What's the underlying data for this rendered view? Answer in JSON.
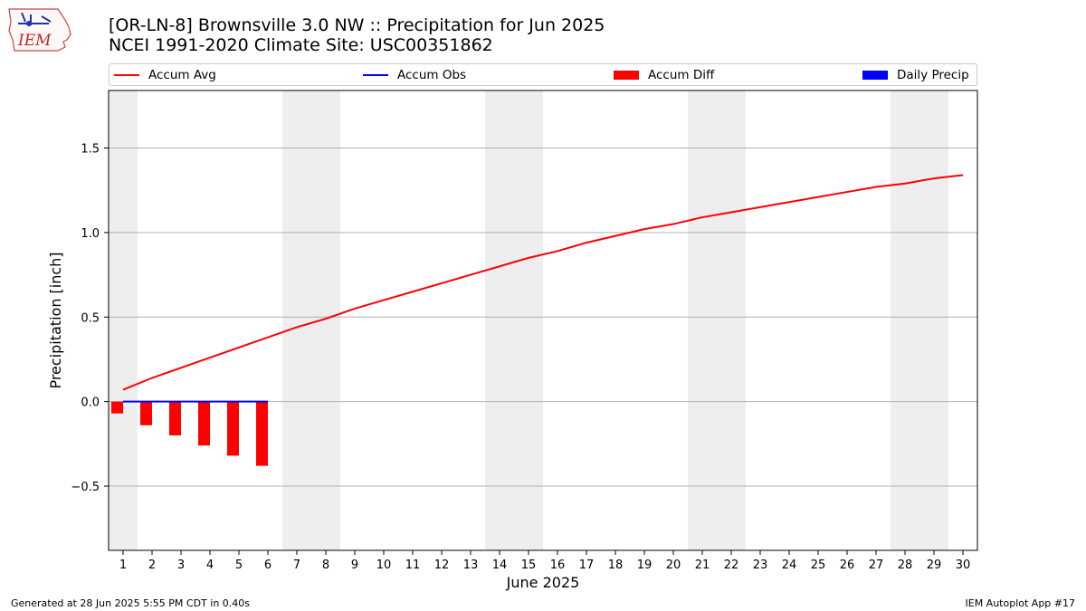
{
  "header": {
    "title_line1": "[OR-LN-8] Brownsville 3.0 NW :: Precipitation for Jun 2025",
    "title_line2": "NCEI 1991-2020 Climate Site: USC00351862",
    "logo_text": "IEM"
  },
  "footer": {
    "left": "Generated at 28 Jun 2025 5:55 PM CDT in 0.40s",
    "right": "IEM Autoplot App #17"
  },
  "legend": [
    {
      "label": "Accum Avg",
      "kind": "line",
      "color": "#ff0000"
    },
    {
      "label": "Accum Obs",
      "kind": "line",
      "color": "#0000ff"
    },
    {
      "label": "Accum Diff",
      "kind": "box",
      "color": "#ff0000"
    },
    {
      "label": "Daily Precip",
      "kind": "box",
      "color": "#0000ff"
    }
  ],
  "chart_data": {
    "type": "line",
    "xlabel": "June 2025",
    "ylabel": "Precipitation [inch]",
    "xlim": [
      0.5,
      30.5
    ],
    "ylim": [
      -0.88,
      1.84
    ],
    "x": [
      1,
      2,
      3,
      4,
      5,
      6,
      7,
      8,
      9,
      10,
      11,
      12,
      13,
      14,
      15,
      16,
      17,
      18,
      19,
      20,
      21,
      22,
      23,
      24,
      25,
      26,
      27,
      28,
      29,
      30
    ],
    "x_tick_labels": [
      "1",
      "2",
      "3",
      "4",
      "5",
      "6",
      "7",
      "8",
      "9",
      "10",
      "11",
      "12",
      "13",
      "14",
      "15",
      "16",
      "17",
      "18",
      "19",
      "20",
      "21",
      "22",
      "23",
      "24",
      "25",
      "26",
      "27",
      "28",
      "29",
      "30"
    ],
    "y_ticks": [
      -0.5,
      0.0,
      0.5,
      1.0,
      1.5
    ],
    "y_tick_labels": [
      "−0.5",
      "0.0",
      "0.5",
      "1.0",
      "1.5"
    ],
    "grid": "horizontal",
    "weekend_shading": [
      [
        0.5,
        1.5
      ],
      [
        6.5,
        8.5
      ],
      [
        13.5,
        15.5
      ],
      [
        20.5,
        22.5
      ],
      [
        27.5,
        29.5
      ]
    ],
    "series": [
      {
        "name": "Accum Avg",
        "kind": "line",
        "color": "#ff0000",
        "x": [
          1,
          2,
          3,
          4,
          5,
          6,
          7,
          8,
          9,
          10,
          11,
          12,
          13,
          14,
          15,
          16,
          17,
          18,
          19,
          20,
          21,
          22,
          23,
          24,
          25,
          26,
          27,
          28,
          29,
          30
        ],
        "values": [
          0.07,
          0.14,
          0.2,
          0.26,
          0.32,
          0.38,
          0.44,
          0.49,
          0.55,
          0.6,
          0.65,
          0.7,
          0.75,
          0.8,
          0.85,
          0.89,
          0.94,
          0.98,
          1.02,
          1.05,
          1.09,
          1.12,
          1.15,
          1.18,
          1.21,
          1.24,
          1.27,
          1.29,
          1.32,
          1.34
        ]
      },
      {
        "name": "Accum Obs",
        "kind": "line",
        "color": "#0000ff",
        "x": [
          1,
          2,
          3,
          4,
          5,
          6
        ],
        "values": [
          0.0,
          0.0,
          0.0,
          0.0,
          0.0,
          0.0
        ]
      },
      {
        "name": "Accum Diff",
        "kind": "bar",
        "color": "#ff0000",
        "x": [
          1,
          2,
          3,
          4,
          5,
          6
        ],
        "values": [
          -0.07,
          -0.14,
          -0.2,
          -0.26,
          -0.32,
          -0.38
        ]
      },
      {
        "name": "Daily Precip",
        "kind": "bar",
        "color": "#0000ff",
        "x": [
          1,
          2,
          3,
          4,
          5,
          6
        ],
        "values": [
          0.0,
          0.0,
          0.0,
          0.0,
          0.0,
          0.0
        ]
      }
    ]
  }
}
